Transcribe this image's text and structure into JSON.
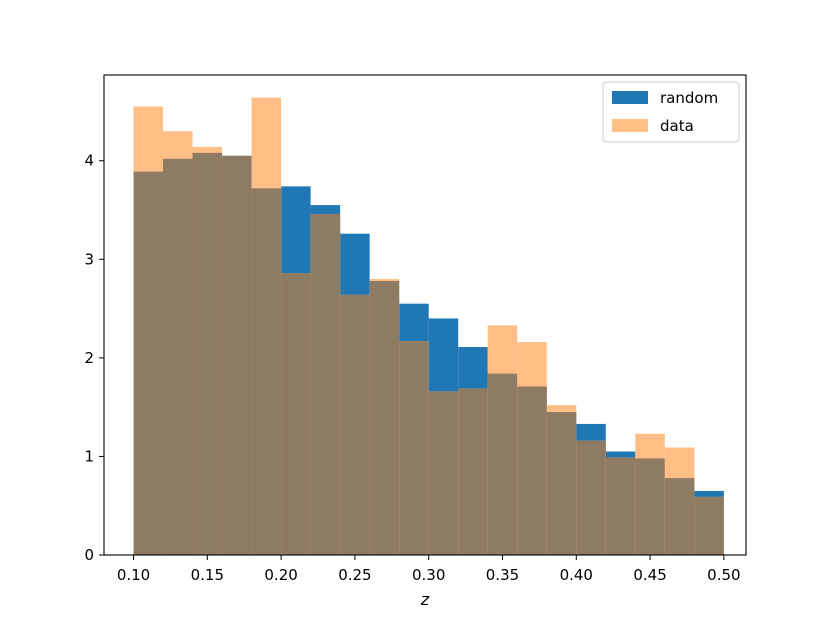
{
  "chart_data": {
    "type": "bar",
    "xlabel": "z",
    "ylabel": "",
    "xlim": [
      0.08,
      0.515
    ],
    "ylim": [
      0,
      4.87
    ],
    "xticks": [
      "0.10",
      "0.15",
      "0.20",
      "0.25",
      "0.30",
      "0.35",
      "0.40",
      "0.45",
      "0.50"
    ],
    "yticks": [
      "0",
      "1",
      "2",
      "3",
      "4"
    ],
    "legend_position": "top-right",
    "bin_edges": [
      0.1,
      0.12,
      0.14,
      0.16,
      0.18,
      0.2,
      0.22,
      0.24,
      0.26,
      0.28,
      0.3,
      0.32,
      0.34,
      0.36,
      0.38,
      0.4,
      0.42,
      0.44,
      0.46,
      0.48,
      0.5
    ],
    "series": [
      {
        "name": "random",
        "color": "#1f77b4",
        "values": [
          3.89,
          4.02,
          4.08,
          4.05,
          3.72,
          3.74,
          3.55,
          3.26,
          2.78,
          2.55,
          2.4,
          2.11,
          1.84,
          1.71,
          1.45,
          1.33,
          1.05,
          0.98,
          0.78,
          0.65
        ]
      },
      {
        "name": "data",
        "color": "#ffbe86",
        "values": [
          4.55,
          4.3,
          4.14,
          4.05,
          4.64,
          2.86,
          3.46,
          2.64,
          2.8,
          2.17,
          1.66,
          1.69,
          2.33,
          2.16,
          1.52,
          1.16,
          0.99,
          1.23,
          1.09,
          0.59
        ]
      }
    ],
    "overlap_color": "#8e7b63"
  }
}
